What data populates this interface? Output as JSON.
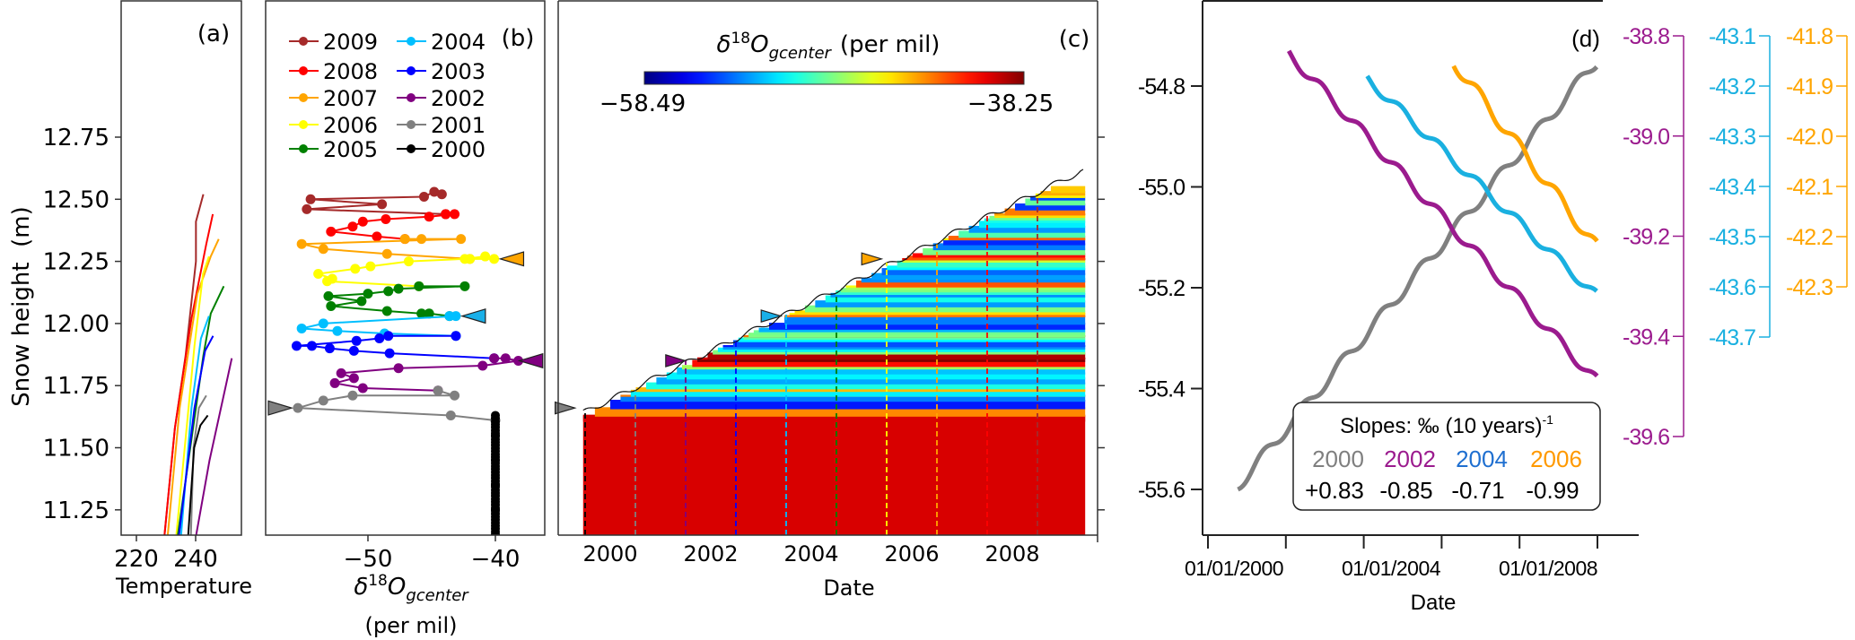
{
  "chart_data": [
    {
      "panel": "a",
      "type": "line",
      "panel_label": "(a)",
      "xlabel": "Temperature",
      "ylabel": "Snow height  (m)",
      "xticks": [
        220,
        240
      ],
      "xtick_labels": [
        "220",
        "240"
      ],
      "yticks": [
        12.75,
        12.5,
        12.25,
        12.0,
        11.75,
        11.5,
        11.25
      ],
      "ytick_labels": [
        "12.75",
        "12.50",
        "12.25",
        "12.00",
        "11.75",
        "11.50",
        "11.25"
      ],
      "xlim": [
        214.8,
        255
      ],
      "ylim": [
        11.15,
        13.3
      ],
      "series": [
        {
          "name": "2009",
          "color": "#a52a2a",
          "points": [
            [
              242.6,
              12.52
            ],
            [
              240.1,
              12.41
            ],
            [
              240.1,
              12.25
            ],
            [
              236.6,
              11.87
            ],
            [
              233.0,
              11.58
            ],
            [
              229.5,
              11.15
            ]
          ]
        },
        {
          "name": "2008",
          "color": "#ff0000",
          "points": [
            [
              245.8,
              12.44
            ],
            [
              243.6,
              12.32
            ],
            [
              238.6,
              12.02
            ],
            [
              233.0,
              11.58
            ],
            [
              229.5,
              11.15
            ]
          ]
        },
        {
          "name": "2007",
          "color": "#ffa500",
          "points": [
            [
              247.8,
              12.34
            ],
            [
              245.1,
              12.27
            ],
            [
              240.6,
              12.12
            ],
            [
              234.6,
              11.66
            ],
            [
              230.6,
              11.15
            ]
          ]
        },
        {
          "name": "2006",
          "color": "#ffff00",
          "points": [
            [
              244.5,
              12.27
            ],
            [
              242.5,
              12.2
            ],
            [
              239.6,
              11.91
            ],
            [
              233.5,
              11.15
            ]
          ]
        },
        {
          "name": "2005",
          "color": "#008000",
          "points": [
            [
              249.5,
              12.15
            ],
            [
              245.1,
              12.04
            ],
            [
              242.6,
              11.87
            ],
            [
              234.0,
              11.15
            ]
          ]
        },
        {
          "name": "2004",
          "color": "#00bfff",
          "points": [
            [
              244.5,
              12.03
            ],
            [
              241.8,
              11.94
            ],
            [
              238.6,
              11.66
            ],
            [
              235.1,
              11.15
            ]
          ]
        },
        {
          "name": "2003",
          "color": "#0000ff",
          "points": [
            [
              245.9,
              11.95
            ],
            [
              243.2,
              11.89
            ],
            [
              239.6,
              11.66
            ],
            [
              234.4,
              11.15
            ]
          ]
        },
        {
          "name": "2002",
          "color": "#800080",
          "points": [
            [
              252.2,
              11.86
            ],
            [
              250.2,
              11.75
            ],
            [
              244.7,
              11.45
            ],
            [
              240.2,
              11.15
            ]
          ]
        },
        {
          "name": "2001",
          "color": "#808080",
          "points": [
            [
              243.6,
              11.71
            ],
            [
              241.1,
              11.66
            ],
            [
              239.3,
              11.5
            ],
            [
              238.4,
              11.15
            ]
          ]
        },
        {
          "name": "2000",
          "color": "#000000",
          "points": [
            [
              244.1,
              11.63
            ],
            [
              241.6,
              11.59
            ],
            [
              239.5,
              11.5
            ],
            [
              237.5,
              11.15
            ]
          ]
        }
      ]
    },
    {
      "panel": "b",
      "type": "line",
      "panel_label": "(b)",
      "xlabel_parts": {
        "delta": "δ",
        "sup": "18",
        "o": "O",
        "sub": "gcenter",
        "units": "(per mil)"
      },
      "xticks": [
        -50,
        -40
      ],
      "xtick_labels": [
        "−50",
        "−40"
      ],
      "xlim": [
        -58.0,
        -36.1
      ],
      "ylim": [
        11.15,
        13.3
      ],
      "legend": [
        "2009",
        "2008",
        "2007",
        "2006",
        "2005",
        "2004",
        "2003",
        "2002",
        "2001",
        "2000"
      ],
      "series": [
        {
          "name": "2009",
          "color": "#a52a2a",
          "points": [
            [
              -44.2,
              12.52
            ],
            [
              -44.8,
              12.53
            ],
            [
              -45.6,
              12.51
            ],
            [
              -54.5,
              12.5
            ],
            [
              -48.9,
              12.48
            ],
            [
              -54.8,
              12.46
            ],
            [
              -43.9,
              12.44
            ]
          ]
        },
        {
          "name": "2008",
          "color": "#ff0000",
          "points": [
            [
              -43.9,
              12.44
            ],
            [
              -43.2,
              12.44
            ],
            [
              -45.2,
              12.43
            ],
            [
              -48.6,
              12.42
            ],
            [
              -50.4,
              12.41
            ],
            [
              -51.2,
              12.39
            ],
            [
              -52.9,
              12.37
            ],
            [
              -49.3,
              12.35
            ],
            [
              -47.1,
              12.34
            ]
          ]
        },
        {
          "name": "2007",
          "color": "#ffa500",
          "points": [
            [
              -47.1,
              12.34
            ],
            [
              -45.8,
              12.34
            ],
            [
              -42.7,
              12.34
            ],
            [
              -55.2,
              12.32
            ],
            [
              -53.5,
              12.3
            ],
            [
              -48.5,
              12.28
            ],
            [
              -42.0,
              12.26
            ]
          ]
        },
        {
          "name": "2006",
          "color": "#ffff00",
          "points": [
            [
              -42.0,
              12.26
            ],
            [
              -40.1,
              12.26
            ],
            [
              -40.8,
              12.27
            ],
            [
              -42.4,
              12.26
            ],
            [
              -46.8,
              12.25
            ],
            [
              -49.8,
              12.23
            ],
            [
              -51.0,
              12.22
            ],
            [
              -53.9,
              12.2
            ],
            [
              -52.8,
              12.18
            ],
            [
              -53.2,
              12.17
            ],
            [
              -46.0,
              12.15
            ]
          ]
        },
        {
          "name": "2005",
          "color": "#008000",
          "points": [
            [
              -46.0,
              12.15
            ],
            [
              -42.4,
              12.15
            ],
            [
              -47.6,
              12.14
            ],
            [
              -48.4,
              12.13
            ],
            [
              -50.0,
              12.12
            ],
            [
              -53.1,
              12.11
            ],
            [
              -50.5,
              12.09
            ],
            [
              -52.9,
              12.07
            ],
            [
              -48.5,
              12.05
            ],
            [
              -45.8,
              12.04
            ],
            [
              -45.2,
              12.04
            ],
            [
              -43.6,
              12.03
            ]
          ]
        },
        {
          "name": "2004",
          "color": "#00bfff",
          "points": [
            [
              -43.6,
              12.03
            ],
            [
              -43.1,
              12.03
            ],
            [
              -53.5,
              12.0
            ],
            [
              -55.2,
              11.98
            ],
            [
              -52.4,
              11.97
            ],
            [
              -48.7,
              11.96
            ],
            [
              -43.1,
              11.95
            ]
          ]
        },
        {
          "name": "2003",
          "color": "#0000ff",
          "points": [
            [
              -43.1,
              11.95
            ],
            [
              -48.4,
              11.95
            ],
            [
              -49.1,
              11.94
            ],
            [
              -50.9,
              11.93
            ],
            [
              -55.6,
              11.91
            ],
            [
              -54.4,
              11.91
            ],
            [
              -53.0,
              11.9
            ],
            [
              -51.1,
              11.89
            ],
            [
              -48.3,
              11.88
            ],
            [
              -40.1,
              11.86
            ]
          ]
        },
        {
          "name": "2002",
          "color": "#800080",
          "points": [
            [
              -40.1,
              11.86
            ],
            [
              -39.2,
              11.86
            ],
            [
              -38.2,
              11.85
            ],
            [
              -41.0,
              11.83
            ],
            [
              -47.6,
              11.82
            ],
            [
              -52.1,
              11.8
            ],
            [
              -51.1,
              11.78
            ],
            [
              -52.6,
              11.76
            ],
            [
              -50.4,
              11.74
            ],
            [
              -44.5,
              11.73
            ]
          ]
        },
        {
          "name": "2001",
          "color": "#808080",
          "points": [
            [
              -44.5,
              11.73
            ],
            [
              -43.2,
              11.71
            ],
            [
              -51.2,
              11.71
            ],
            [
              -53.5,
              11.69
            ],
            [
              -55.5,
              11.66
            ],
            [
              -43.5,
              11.63
            ],
            [
              -40.0,
              11.61
            ]
          ]
        },
        {
          "name": "2000",
          "color": "#000000",
          "points": [
            [
              -40.0,
              11.63
            ],
            [
              -40.0,
              11.55
            ],
            [
              -40.0,
              11.45
            ],
            [
              -40.0,
              11.35
            ],
            [
              -40.0,
              11.25
            ],
            [
              -40.0,
              11.15
            ]
          ]
        }
      ],
      "markers": [
        {
          "color": "#808080",
          "x": -56.9,
          "y": 11.66,
          "dir": "right"
        },
        {
          "color": "#ffa500",
          "x": -38.7,
          "y": 12.26,
          "dir": "left"
        },
        {
          "color": "#1ab0e8",
          "x": -41.7,
          "y": 12.03,
          "dir": "left"
        },
        {
          "color": "#800080",
          "x": -37.2,
          "y": 11.85,
          "dir": "left"
        }
      ]
    },
    {
      "panel": "c",
      "type": "heatmap",
      "panel_label": "(c)",
      "xlabel": "Date",
      "xticks": [
        2000,
        2002,
        2004,
        2006,
        2008
      ],
      "xtick_labels": [
        "2000",
        "2002",
        "2004",
        "2006",
        "2008"
      ],
      "xlim": [
        1998.7,
        2009.45
      ],
      "ylim": [
        11.15,
        13.3
      ],
      "colorbar": {
        "title_parts": {
          "delta": "δ",
          "sup": "18",
          "o": "O",
          "sub": "gcenter",
          "units": "(per mil)"
        },
        "min": -58.49,
        "max": -38.25,
        "min_label": "−58.49",
        "max_label": "−38.25",
        "colormap": "jet"
      },
      "surface": {
        "t_start": 1999.46,
        "h_start": 11.64,
        "t_end": 2009.45,
        "h_end": 12.62
      },
      "base_value": -40.0,
      "year_lines": [
        {
          "year": "2000",
          "t": 1999.5,
          "color": "#000000"
        },
        {
          "year": "2001",
          "t": 2000.5,
          "color": "#808080"
        },
        {
          "year": "2002",
          "t": 2001.5,
          "color": "#800080"
        },
        {
          "year": "2003",
          "t": 2002.5,
          "color": "#0000ff"
        },
        {
          "year": "2004",
          "t": 2003.5,
          "color": "#00bfff"
        },
        {
          "year": "2005",
          "t": 2004.5,
          "color": "#008000"
        },
        {
          "year": "2006",
          "t": 2005.5,
          "color": "#ffff00"
        },
        {
          "year": "2007",
          "t": 2006.5,
          "color": "#ffa500"
        },
        {
          "year": "2008",
          "t": 2007.5,
          "color": "#ff0000"
        },
        {
          "year": "2009",
          "t": 2008.5,
          "color": "#a52a2a"
        }
      ],
      "markers": [
        {
          "color": "#808080",
          "t": 1999.1,
          "h": 11.66
        },
        {
          "color": "#800080",
          "t": 2001.3,
          "h": 11.85
        },
        {
          "color": "#1ab0e8",
          "t": 2003.2,
          "h": 12.03
        },
        {
          "color": "#ffa500",
          "t": 2005.2,
          "h": 12.26
        }
      ]
    },
    {
      "panel": "d",
      "type": "line",
      "panel_label": "(d)",
      "xlabel": "Date",
      "xtick_labels": [
        "01/01/2000",
        "01/01/2004",
        "01/01/2008"
      ],
      "left_axis": {
        "ticks": [
          -54.8,
          -55.0,
          -55.2,
          -55.4,
          -55.6
        ],
        "labels": [
          "-54.8",
          "-55.0",
          "-55.2",
          "-55.4",
          "-55.6"
        ]
      },
      "right_axes": [
        {
          "name": "2002",
          "color": "#9b1b8e",
          "labels": [
            "-38.8",
            "-39.0",
            "-39.2",
            "-39.4",
            "-39.6"
          ],
          "ticks": [
            -38.8,
            -39.0,
            -39.2,
            -39.4,
            -39.6
          ]
        },
        {
          "name": "2004",
          "color": "#1ab0e0",
          "labels": [
            "-43.1",
            "-43.2",
            "-43.3",
            "-43.4",
            "-43.5",
            "-43.6",
            "-43.7"
          ],
          "ticks": [
            -43.1,
            -43.2,
            -43.3,
            -43.4,
            -43.5,
            -43.6,
            -43.7
          ]
        },
        {
          "name": "2006",
          "color": "#ffa500",
          "labels": [
            "-41.8",
            "-41.9",
            "-42.0",
            "-42.1",
            "-42.2",
            "-42.3"
          ],
          "ticks": [
            -41.8,
            -41.9,
            -42.0,
            -42.1,
            -42.2,
            -42.3
          ]
        }
      ],
      "series": [
        {
          "name": "2000",
          "color": "#808080",
          "axis": "left",
          "t0": 2000.1,
          "t1": 2009.27,
          "v0": -55.6,
          "v1": -54.76
        },
        {
          "name": "2002",
          "color": "#9b1b8e",
          "axis": "purple",
          "t0": 2001.4,
          "t1": 2009.27,
          "v0": -38.83,
          "v1": -39.48
        },
        {
          "name": "2004",
          "color": "#1ab0e0",
          "axis": "blue",
          "t0": 2003.4,
          "t1": 2009.27,
          "v0": -43.18,
          "v1": -43.61
        },
        {
          "name": "2006",
          "color": "#ffa500",
          "axis": "orange",
          "t0": 2005.6,
          "t1": 2009.27,
          "v0": -41.86,
          "v1": -42.21
        }
      ],
      "slopes_box": {
        "title": "Slopes: ‰ (10 years)",
        "title_sup": "-1",
        "entries": [
          {
            "year": "2000",
            "slope": "+0.83",
            "color": "#7f7f7f"
          },
          {
            "year": "2002",
            "slope": "-0.85",
            "color": "#9b1b8e"
          },
          {
            "year": "2004",
            "slope": "-0.71",
            "color": "#1f6fd0"
          },
          {
            "year": "2006",
            "slope": "-0.99",
            "color": "#ff9900"
          }
        ]
      }
    }
  ]
}
